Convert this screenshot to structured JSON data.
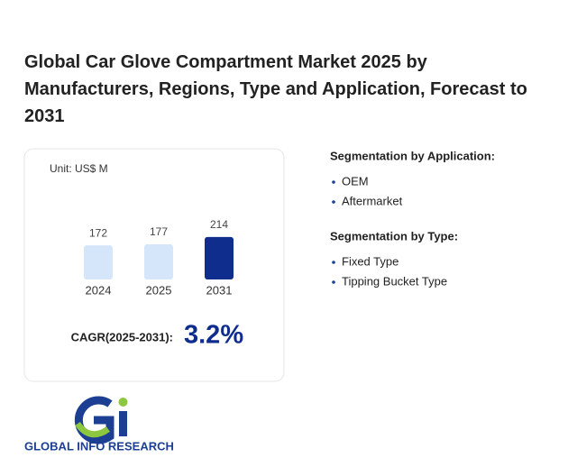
{
  "title": "Global Car Glove Compartment Market 2025 by Manufacturers, Regions, Type and Application, Forecast to 2031",
  "chart_data": {
    "type": "bar",
    "unit": "Unit: US$ M",
    "categories": [
      "2024",
      "2025",
      "2031"
    ],
    "values": [
      172,
      177,
      214
    ],
    "colors": [
      "#d6e6fa",
      "#d6e6fa",
      "#0f2d8c"
    ]
  },
  "cagr": {
    "label": "CAGR(2025-2031):",
    "value": "3.2%"
  },
  "segments": [
    {
      "heading": "Segmentation by Application:",
      "items": [
        "OEM",
        "Aftermarket"
      ]
    },
    {
      "heading": "Segmentation by Type:",
      "items": [
        "Fixed Type",
        "Tipping Bucket Type"
      ]
    }
  ],
  "logo": {
    "text": "GLOBAL INFO RESEARCH"
  }
}
